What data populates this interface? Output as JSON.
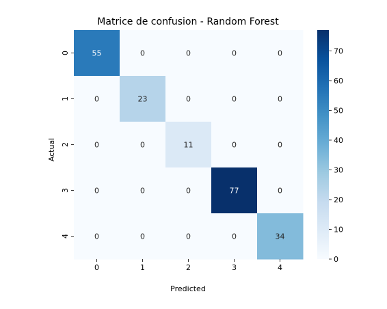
{
  "chart_data": {
    "type": "heatmap",
    "title": "Matrice de confusion - Random Forest",
    "xlabel": "Predicted",
    "ylabel": "Actual",
    "x_categories": [
      "0",
      "1",
      "2",
      "3",
      "4"
    ],
    "y_categories": [
      "0",
      "1",
      "2",
      "3",
      "4"
    ],
    "values": [
      [
        55,
        0,
        0,
        0,
        0
      ],
      [
        0,
        23,
        0,
        0,
        0
      ],
      [
        0,
        0,
        11,
        0,
        0
      ],
      [
        0,
        0,
        0,
        77,
        0
      ],
      [
        0,
        0,
        0,
        0,
        34
      ]
    ],
    "colorbar": {
      "range": [
        0,
        77
      ],
      "ticks": [
        "0",
        "10",
        "20",
        "30",
        "40",
        "50",
        "60",
        "70"
      ],
      "colormap": "Blues",
      "colors": [
        "#f7fbff",
        "#deebf7",
        "#c6dbef",
        "#9ecae1",
        "#6baed6",
        "#4292c6",
        "#2171b5",
        "#08519c",
        "#08306b"
      ]
    },
    "grid": false,
    "legend": "none"
  }
}
